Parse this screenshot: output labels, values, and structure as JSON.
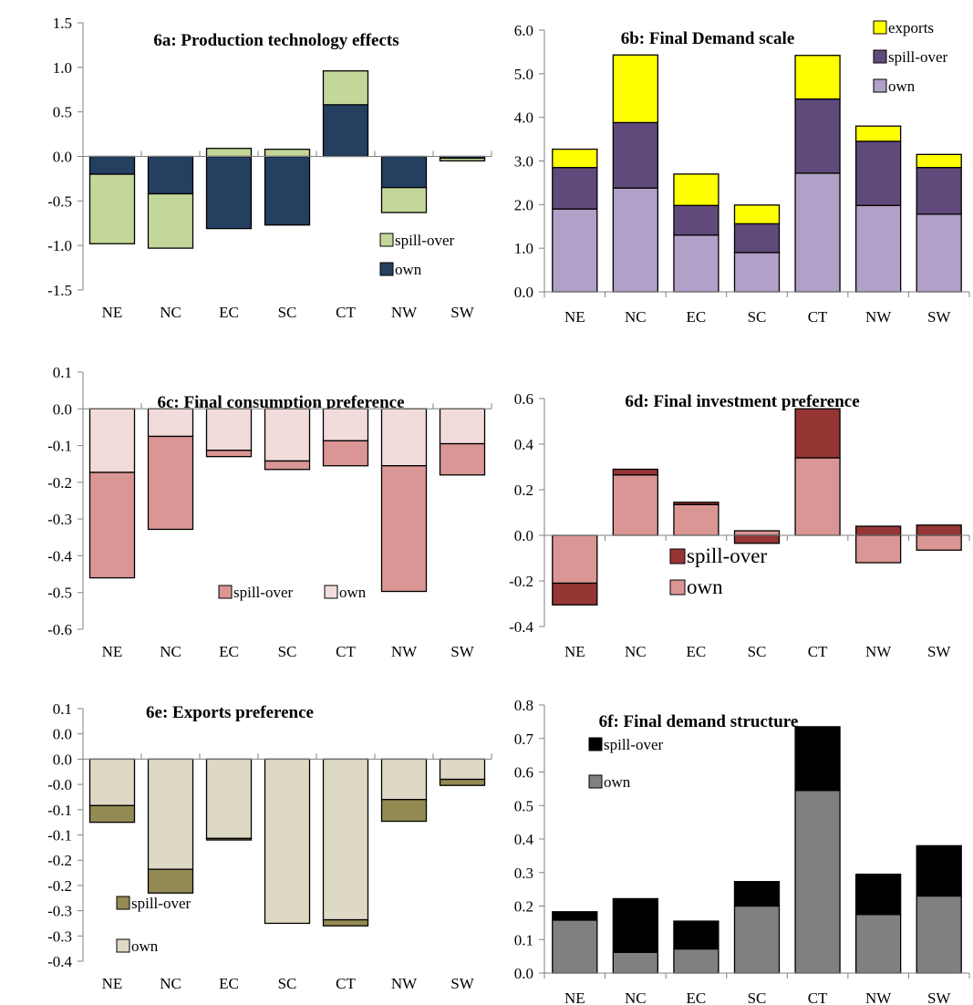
{
  "chart_data": [
    {
      "id": "6a",
      "type": "bar",
      "stacking": "split-sign",
      "title": "6a: Production technology effects",
      "categories": [
        "NE",
        "NC",
        "EC",
        "SC",
        "CT",
        "NW",
        "SW"
      ],
      "ylim": [
        -1.5,
        1.5
      ],
      "yticks": [
        -1.5,
        -1.0,
        -0.5,
        0.0,
        0.5,
        1.0,
        1.5
      ],
      "ytick_labels": [
        "-1.5",
        "-1.0",
        "-0.5",
        "0.0",
        "0.5",
        "1.0",
        "1.5"
      ],
      "grid": false,
      "legend_position": "bottom-right",
      "legend_order": [
        "spill-over",
        "own"
      ],
      "series": [
        {
          "name": "own",
          "color": "#243f60",
          "values": [
            -0.2,
            -0.42,
            -0.81,
            -0.77,
            0.58,
            -0.35,
            -0.02
          ]
        },
        {
          "name": "spill-over",
          "color": "#c4d79b",
          "values": [
            -0.78,
            -0.61,
            0.09,
            0.08,
            0.38,
            -0.28,
            -0.03
          ]
        }
      ]
    },
    {
      "id": "6b",
      "type": "bar",
      "stacking": "stacked",
      "title": "6b:  Final Demand scale",
      "categories": [
        "NE",
        "NC",
        "EC",
        "SC",
        "CT",
        "NW",
        "SW"
      ],
      "ylim": [
        0,
        6
      ],
      "yticks": [
        0,
        1,
        2,
        3,
        4,
        5,
        6
      ],
      "ytick_labels": [
        "0.0",
        "1.0",
        "2.0",
        "3.0",
        "4.0",
        "5.0",
        "6.0"
      ],
      "grid": false,
      "legend_position": "top-right",
      "legend_order": [
        "exports",
        "spill-over",
        "own"
      ],
      "series": [
        {
          "name": "own",
          "color": "#b1a0c7",
          "values": [
            1.9,
            2.38,
            1.3,
            0.9,
            2.72,
            1.98,
            1.78
          ]
        },
        {
          "name": "spill-over",
          "color": "#604a7b",
          "values": [
            0.95,
            1.5,
            0.68,
            0.66,
            1.7,
            1.47,
            1.07
          ]
        },
        {
          "name": "exports",
          "color": "#ffff00",
          "values": [
            0.42,
            1.55,
            0.72,
            0.43,
            1.0,
            0.35,
            0.3
          ]
        }
      ]
    },
    {
      "id": "6c",
      "type": "bar",
      "stacking": "split-sign",
      "title": "6c: Final consumption preference",
      "categories": [
        "NE",
        "NC",
        "EC",
        "SC",
        "CT",
        "NW",
        "SW"
      ],
      "ylim": [
        -0.6,
        0.1
      ],
      "yticks": [
        -0.6,
        -0.5,
        -0.4,
        -0.3,
        -0.2,
        -0.1,
        0.0,
        0.1
      ],
      "ytick_labels": [
        "-0.6",
        "-0.5",
        "-0.4",
        "-0.3",
        "-0.2",
        "-0.1",
        "0.0",
        "0.1"
      ],
      "grid": false,
      "legend_position": "bottom-center",
      "legend_order": [
        "spill-over",
        "own"
      ],
      "series": [
        {
          "name": "own",
          "color": "#f2dcdb",
          "values": [
            -0.173,
            -0.075,
            -0.113,
            -0.142,
            -0.087,
            -0.155,
            -0.095
          ]
        },
        {
          "name": "spill-over",
          "color": "#da9694",
          "values": [
            -0.287,
            -0.253,
            -0.017,
            -0.023,
            -0.068,
            -0.342,
            -0.085
          ]
        }
      ]
    },
    {
      "id": "6d",
      "type": "bar",
      "stacking": "split-sign",
      "title": "6d: Final investment preference",
      "categories": [
        "NE",
        "NC",
        "EC",
        "SC",
        "CT",
        "NW",
        "SW"
      ],
      "ylim": [
        -0.4,
        0.6
      ],
      "yticks": [
        -0.4,
        -0.2,
        0.0,
        0.2,
        0.4,
        0.6
      ],
      "ytick_labels": [
        "-0.4",
        "-0.2",
        "0.0",
        "0.2",
        "0.4",
        "0.6"
      ],
      "grid": false,
      "legend_position": "bottom-center",
      "legend_order": [
        "spill-over",
        "own"
      ],
      "series": [
        {
          "name": "own",
          "color": "#da9694",
          "values": [
            -0.21,
            0.265,
            0.135,
            0.02,
            0.34,
            -0.12,
            -0.065
          ]
        },
        {
          "name": "spill-over",
          "color": "#963634",
          "values": [
            -0.095,
            0.025,
            0.01,
            -0.035,
            0.215,
            0.04,
            0.045
          ]
        }
      ]
    },
    {
      "id": "6e",
      "type": "bar",
      "stacking": "split-sign",
      "title": "6e: Exports preference",
      "categories": [
        "NE",
        "NC",
        "EC",
        "SC",
        "CT",
        "NW",
        "SW"
      ],
      "ylim": [
        -0.4,
        0.1
      ],
      "yticks": [
        -0.4,
        -0.35,
        -0.3,
        -0.25,
        -0.2,
        -0.15,
        -0.1,
        -0.05,
        0.0,
        0.05,
        0.1
      ],
      "ytick_labels": [
        "-0.4",
        "-0.3",
        "-0.3",
        "-0.2",
        "-0.2",
        "-0.1",
        "-0.1",
        "-0.0",
        "0.0",
        "0.0",
        "0.1"
      ],
      "grid": false,
      "legend_position": "bottom-left",
      "legend_order": [
        "spill-over",
        "own"
      ],
      "series": [
        {
          "name": "own",
          "color": "#ddd9c4",
          "values": [
            -0.092,
            -0.218,
            -0.157,
            -0.325,
            -0.318,
            -0.08,
            -0.04
          ]
        },
        {
          "name": "spill-over",
          "color": "#948a54",
          "values": [
            -0.033,
            -0.047,
            -0.003,
            0.0,
            -0.012,
            -0.043,
            -0.012
          ]
        }
      ]
    },
    {
      "id": "6f",
      "type": "bar",
      "stacking": "stacked",
      "title": "6f: Final demand structure",
      "categories": [
        "NE",
        "NC",
        "EC",
        "SC",
        "CT",
        "NW",
        "SW"
      ],
      "ylim": [
        0,
        0.8
      ],
      "yticks": [
        0,
        0.1,
        0.2,
        0.3,
        0.4,
        0.5,
        0.6,
        0.7,
        0.8
      ],
      "ytick_labels": [
        "0.0",
        "0.1",
        "0.2",
        "0.3",
        "0.4",
        "0.5",
        "0.6",
        "0.7",
        "0.8"
      ],
      "grid": false,
      "legend_position": "top-left",
      "legend_order": [
        "spill-over",
        "own"
      ],
      "series": [
        {
          "name": "own",
          "color": "#808080",
          "values": [
            0.158,
            0.062,
            0.072,
            0.2,
            0.545,
            0.175,
            0.23
          ]
        },
        {
          "name": "spill-over",
          "color": "#000000",
          "values": [
            0.025,
            0.16,
            0.083,
            0.073,
            0.19,
            0.12,
            0.15
          ]
        }
      ]
    }
  ]
}
